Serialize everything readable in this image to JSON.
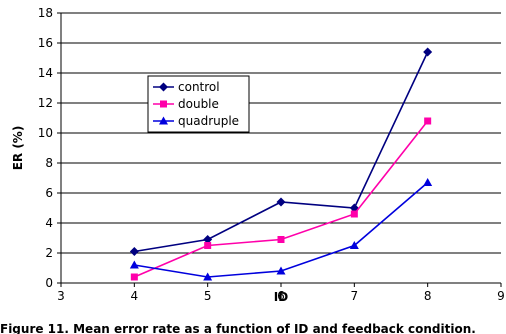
{
  "chart_data": {
    "type": "line",
    "xlabel": "ID",
    "ylabel": "ER (%)",
    "xlim": [
      3,
      9
    ],
    "ylim": [
      0,
      18
    ],
    "x_ticks": [
      "3",
      "4",
      "5",
      "6",
      "7",
      "8",
      "9"
    ],
    "y_ticks": [
      "0",
      "2",
      "4",
      "6",
      "8",
      "10",
      "12",
      "14",
      "16",
      "18"
    ],
    "grid": "horizontal",
    "legend_position": "inside-left",
    "x": [
      4,
      5,
      6,
      7,
      8
    ],
    "series": [
      {
        "name": "control",
        "color": "#000080",
        "marker": "diamond",
        "values": [
          2.1,
          2.9,
          5.4,
          5.0,
          15.4
        ]
      },
      {
        "name": "double",
        "color": "#ff00aa",
        "marker": "square",
        "values": [
          0.4,
          2.5,
          2.9,
          4.6,
          10.8
        ]
      },
      {
        "name": "quadruple",
        "color": "#0000dd",
        "marker": "triangle",
        "values": [
          1.2,
          0.4,
          0.8,
          2.5,
          6.7
        ]
      }
    ]
  },
  "caption": "Figure 11. Mean error rate as a function of ID and feedback condition."
}
